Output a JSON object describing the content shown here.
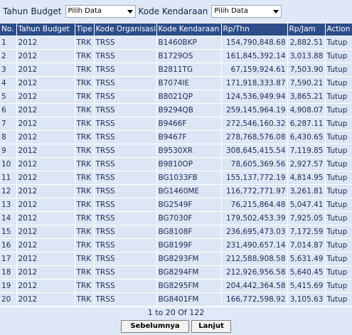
{
  "filters": {
    "year_label": "Tahun Budget",
    "year_value": "Pilih Data",
    "vehicle_label": "Kode Kendaraan",
    "vehicle_value": "Pilih Data"
  },
  "table": {
    "headers": [
      "No.",
      "Tahun Budget",
      "Tipe",
      "Kode Organisasi",
      "Kode Kendaraan",
      "Rp/Thn",
      "Rp/Jam",
      "Action"
    ],
    "rows": [
      [
        "1",
        "2012",
        "TRK",
        "TRSS",
        "B1460BKP",
        "154,790,848.68",
        "2,882.51",
        "Tutup"
      ],
      [
        "2",
        "2012",
        "TRK",
        "TRSS",
        "B1729OS",
        "161,845,392.14",
        "3,013.88",
        "Tutup"
      ],
      [
        "3",
        "2012",
        "TRK",
        "TRSS",
        "B2811TG",
        "67,159,924.61",
        "7,503.90",
        "Tutup"
      ],
      [
        "4",
        "2012",
        "TRK",
        "TRSS",
        "B7074IE",
        "171,918,333.87",
        "7,590.21",
        "Tutup"
      ],
      [
        "5",
        "2012",
        "TRK",
        "TRSS",
        "B8021QP",
        "124,536,949.94",
        "3,865.21",
        "Tutup"
      ],
      [
        "6",
        "2012",
        "TRK",
        "TRSS",
        "B9294QB",
        "259,145,964.19",
        "4,908.07",
        "Tutup"
      ],
      [
        "7",
        "2012",
        "TRK",
        "TRSS",
        "B9466F",
        "272,546,160.32",
        "6,287.11",
        "Tutup"
      ],
      [
        "8",
        "2012",
        "TRK",
        "TRSS",
        "B9467F",
        "278,768,576.08",
        "6,430.65",
        "Tutup"
      ],
      [
        "9",
        "2012",
        "TRK",
        "TRSS",
        "B9530XR",
        "308,645,415.54",
        "7,119.85",
        "Tutup"
      ],
      [
        "10",
        "2012",
        "TRK",
        "TRSS",
        "B9810OP",
        "78,605,369.56",
        "2,927.57",
        "Tutup"
      ],
      [
        "11",
        "2012",
        "TRK",
        "TRSS",
        "BG1033FB",
        "155,137,772.19",
        "4,814.95",
        "Tutup"
      ],
      [
        "12",
        "2012",
        "TRK",
        "TRSS",
        "BG1460ME",
        "116,772,771.97",
        "3,261.81",
        "Tutup"
      ],
      [
        "13",
        "2012",
        "TRK",
        "TRSS",
        "BG2549F",
        "76,215,864.48",
        "5,047.41",
        "Tutup"
      ],
      [
        "14",
        "2012",
        "TRK",
        "TRSS",
        "BG7030F",
        "179,502,453.39",
        "7,925.05",
        "Tutup"
      ],
      [
        "15",
        "2012",
        "TRK",
        "TRSS",
        "BG8108F",
        "236,695,473.03",
        "7,172.59",
        "Tutup"
      ],
      [
        "16",
        "2012",
        "TRK",
        "TRSS",
        "BG8199F",
        "231,490,657.14",
        "7,014.87",
        "Tutup"
      ],
      [
        "17",
        "2012",
        "TRK",
        "TRSS",
        "BG8293FM",
        "212,588,908.58",
        "5,631.49",
        "Tutup"
      ],
      [
        "18",
        "2012",
        "TRK",
        "TRSS",
        "BG8294FM",
        "212,926,956.58",
        "5,640.45",
        "Tutup"
      ],
      [
        "19",
        "2012",
        "TRK",
        "TRSS",
        "BG8295FM",
        "204,442,364.58",
        "5,415.69",
        "Tutup"
      ],
      [
        "20",
        "2012",
        "TRK",
        "TRSS",
        "BG8401FM",
        "166,772,598.92",
        "3,105.63",
        "Tutup"
      ]
    ]
  },
  "pager": {
    "info": "1 to 20 Of 122",
    "prev_label": "Sebelumnya",
    "next_label": "Lanjut"
  }
}
